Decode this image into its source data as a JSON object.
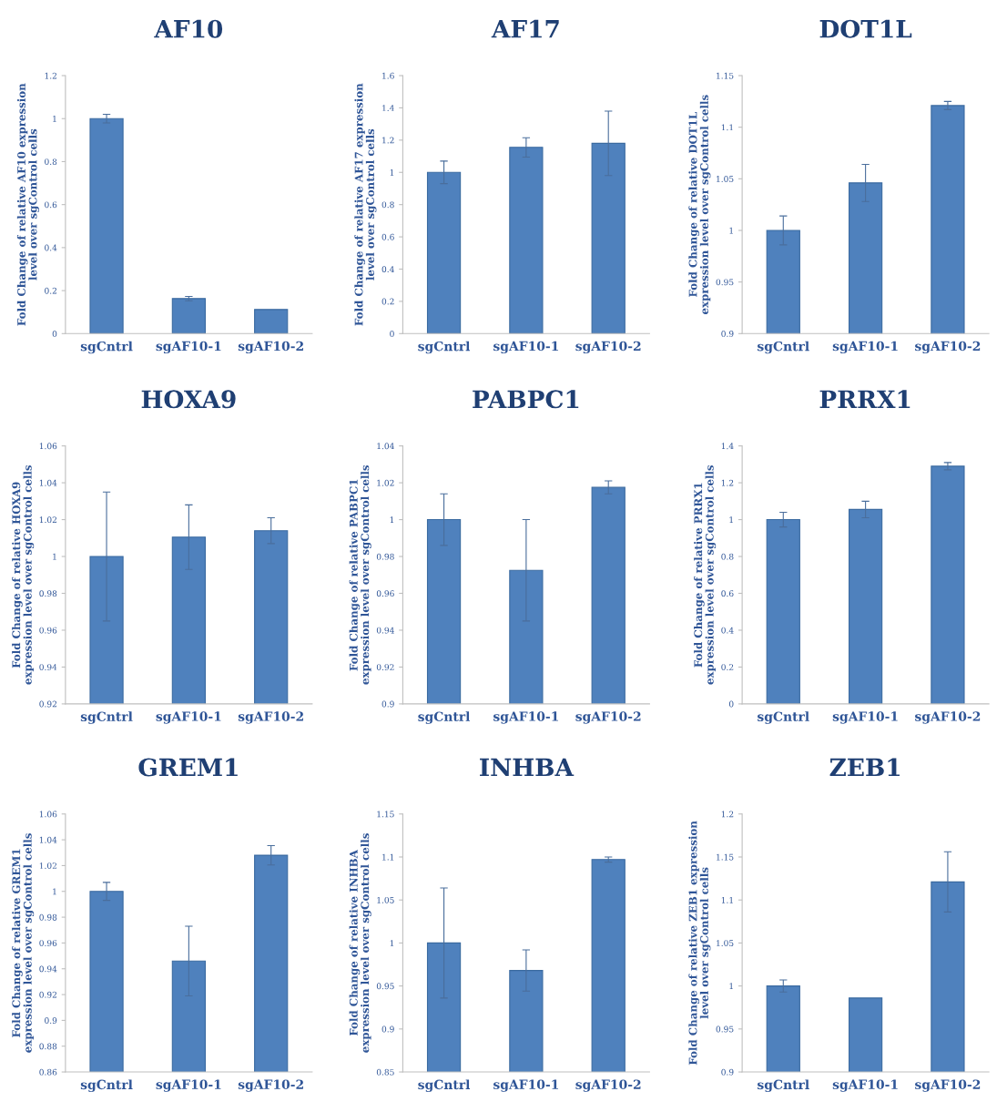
{
  "chart_data": [
    {
      "type": "bar",
      "title": "AF10",
      "ylabel": "Fold Change of relative AF10 expression\nlevel over sgControl cells",
      "categories": [
        "sgCntrl",
        "sgAF10-1",
        "sgAF10-2"
      ],
      "values": [
        1,
        0.163,
        0.112
      ],
      "errors": [
        0.02,
        0.01,
        null
      ],
      "color": "#4f81bd",
      "ylim": [
        0,
        1.2
      ],
      "yticks": [
        0,
        0.2,
        0.4,
        0.6,
        0.8,
        1,
        1.2
      ],
      "grid": false
    },
    {
      "type": "bar",
      "title": "AF17",
      "ylabel": "Fold Change of relative AF17 expression\nlevel over sgControl cells",
      "categories": [
        "sgCntrl",
        "sgAF10-1",
        "sgAF10-2"
      ],
      "values": [
        1,
        1.155,
        1.18
      ],
      "errors": [
        0.07,
        0.06,
        0.2
      ],
      "color": "#4f81bd",
      "ylim": [
        0,
        1.6
      ],
      "yticks": [
        0,
        0.2,
        0.4,
        0.6,
        0.8,
        1,
        1.2,
        1.4,
        1.6
      ],
      "grid": false
    },
    {
      "type": "bar",
      "title": "DOT1L",
      "ylabel": "Fold Change of relative DOT1L\nexpression level over sgControl cells",
      "categories": [
        "sgCntrl",
        "sgAF10-1",
        "sgAF10-2"
      ],
      "values": [
        1,
        1.046,
        1.121
      ],
      "errors": [
        0.014,
        0.018,
        0.004
      ],
      "color": "#4f81bd",
      "ylim": [
        0.9,
        1.15
      ],
      "yticks": [
        0.9,
        0.95,
        1,
        1.05,
        1.1,
        1.15
      ],
      "grid": false
    },
    {
      "type": "bar",
      "title": "HOXA9",
      "ylabel": "Fold Change of relative HOXA9\nexpression level over sgControl cells",
      "categories": [
        "sgCntrl",
        "sgAF10-1",
        "sgAF10-2"
      ],
      "values": [
        1,
        1.0105,
        1.014
      ],
      "errors": [
        0.035,
        0.0175,
        0.007
      ],
      "color": "#4f81bd",
      "ylim": [
        0.92,
        1.06
      ],
      "yticks": [
        0.92,
        0.94,
        0.96,
        0.98,
        1,
        1.02,
        1.04,
        1.06
      ],
      "grid": false
    },
    {
      "type": "bar",
      "title": "PABPC1",
      "ylabel": "Fold Change of relative PABPC1\nexpression level over sgControl cells",
      "categories": [
        "sgCntrl",
        "sgAF10-1",
        "sgAF10-2"
      ],
      "values": [
        1,
        0.9725,
        1.0175
      ],
      "errors": [
        0.014,
        0.0275,
        0.0035
      ],
      "color": "#4f81bd",
      "ylim": [
        0.9,
        1.04
      ],
      "yticks": [
        0.9,
        0.92,
        0.94,
        0.96,
        0.98,
        1,
        1.02,
        1.04
      ],
      "grid": false
    },
    {
      "type": "bar",
      "title": "PRRX1",
      "ylabel": "Fold Change of relative PRRX1\nexpression level over sgControl cells",
      "categories": [
        "sgCntrl",
        "sgAF10-1",
        "sgAF10-2"
      ],
      "values": [
        1,
        1.055,
        1.29
      ],
      "errors": [
        0.04,
        0.045,
        0.02
      ],
      "color": "#4f81bd",
      "ylim": [
        0,
        1.4
      ],
      "yticks": [
        0,
        0.2,
        0.4,
        0.6,
        0.8,
        1,
        1.2,
        1.4
      ],
      "grid": false
    },
    {
      "type": "bar",
      "title": "GREM1",
      "ylabel": "Fold Change of relative GREM1\nexpression level over sgControl cells",
      "categories": [
        "sgCntrl",
        "sgAF10-1",
        "sgAF10-2"
      ],
      "values": [
        1,
        0.946,
        1.028
      ],
      "errors": [
        0.007,
        0.027,
        0.0075
      ],
      "color": "#4f81bd",
      "ylim": [
        0.86,
        1.06
      ],
      "yticks": [
        0.86,
        0.88,
        0.9,
        0.92,
        0.94,
        0.96,
        0.98,
        1,
        1.02,
        1.04,
        1.06
      ],
      "grid": false
    },
    {
      "type": "bar",
      "title": "INHBA",
      "ylabel": "Fold Change of relative INHBA\nexpression level over sgControl cells",
      "categories": [
        "sgCntrl",
        "sgAF10-1",
        "sgAF10-2"
      ],
      "values": [
        1,
        0.968,
        1.097
      ],
      "errors": [
        0.064,
        0.024,
        0.003
      ],
      "color": "#4f81bd",
      "ylim": [
        0.85,
        1.15
      ],
      "yticks": [
        0.85,
        0.9,
        0.95,
        1,
        1.05,
        1.1,
        1.15
      ],
      "grid": false
    },
    {
      "type": "bar",
      "title": "ZEB1",
      "ylabel": "Fold Change of relative ZEB1 expression\nlevel over sgControl cells",
      "categories": [
        "sgCntrl",
        "sgAF10-1",
        "sgAF10-2"
      ],
      "values": [
        1,
        0.986,
        1.121
      ],
      "errors": [
        0.007,
        null,
        0.035
      ],
      "color": "#4f81bd",
      "ylim": [
        0.9,
        1.2
      ],
      "yticks": [
        0.9,
        0.95,
        1,
        1.05,
        1.1,
        1.15,
        1.2
      ],
      "grid": false
    }
  ]
}
